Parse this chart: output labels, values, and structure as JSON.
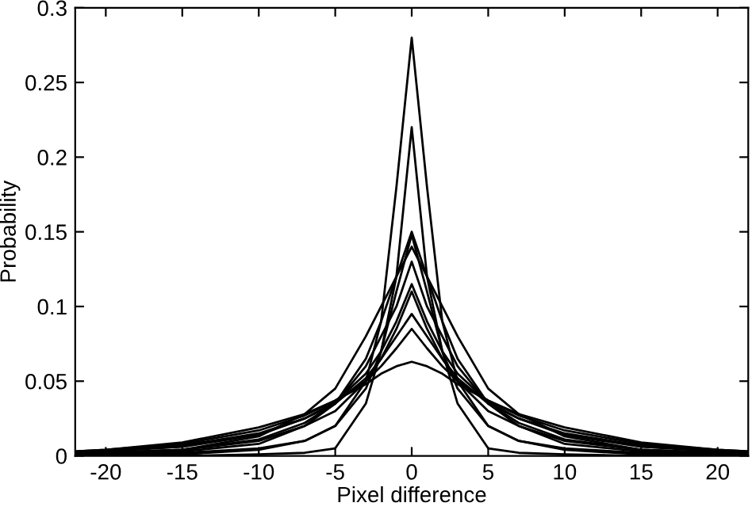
{
  "chart_data": {
    "type": "line",
    "xlabel": "Pixel difference",
    "ylabel": "Probability",
    "x": [
      -22,
      -20,
      -15,
      -10,
      -7,
      -5,
      -3,
      -2,
      -1,
      0,
      1,
      2,
      3,
      5,
      7,
      10,
      15,
      20,
      22
    ],
    "xlim": [
      -22,
      22
    ],
    "xticks": [
      -20,
      -15,
      -10,
      -5,
      0,
      5,
      10,
      15,
      20
    ],
    "ylim": [
      0,
      0.3
    ],
    "yticks": [
      0,
      0.05,
      0.1,
      0.15,
      0.2,
      0.25,
      0.3
    ],
    "grid": false,
    "marker": "none",
    "line_style": "solid",
    "series": [
      {
        "color": "#000000",
        "values": [
          0,
          0.001,
          0.001,
          0.004,
          0.01,
          0.02,
          0.05,
          0.09,
          0.18,
          0.28,
          0.18,
          0.09,
          0.05,
          0.02,
          0.01,
          0.004,
          0.001,
          0.001,
          0
        ]
      },
      {
        "color": "#000000",
        "values": [
          0.001,
          0.001,
          0.002,
          0.005,
          0.01,
          0.02,
          0.045,
          0.07,
          0.12,
          0.22,
          0.12,
          0.07,
          0.045,
          0.02,
          0.01,
          0.005,
          0.002,
          0.001,
          0.001
        ]
      },
      {
        "color": "#000000",
        "values": [
          0.001,
          0.001,
          0.003,
          0.008,
          0.02,
          0.035,
          0.065,
          0.09,
          0.12,
          0.15,
          0.12,
          0.09,
          0.065,
          0.035,
          0.02,
          0.008,
          0.003,
          0.001,
          0.001
        ]
      },
      {
        "color": "#000000",
        "values": [
          0,
          0,
          0,
          0.001,
          0.002,
          0.005,
          0.035,
          0.07,
          0.11,
          0.148,
          0.11,
          0.07,
          0.035,
          0.005,
          0.002,
          0.001,
          0,
          0,
          0
        ]
      },
      {
        "color": "#000000",
        "values": [
          0.001,
          0.002,
          0.004,
          0.013,
          0.028,
          0.045,
          0.08,
          0.1,
          0.12,
          0.14,
          0.12,
          0.1,
          0.08,
          0.045,
          0.028,
          0.013,
          0.004,
          0.002,
          0.001
        ]
      },
      {
        "color": "#000000",
        "values": [
          0.001,
          0.002,
          0.004,
          0.011,
          0.022,
          0.035,
          0.06,
          0.08,
          0.1,
          0.13,
          0.1,
          0.08,
          0.06,
          0.035,
          0.022,
          0.011,
          0.004,
          0.002,
          0.001
        ]
      },
      {
        "color": "#000000",
        "values": [
          0.002,
          0.003,
          0.006,
          0.014,
          0.025,
          0.036,
          0.055,
          0.07,
          0.09,
          0.115,
          0.09,
          0.07,
          0.055,
          0.036,
          0.025,
          0.014,
          0.006,
          0.003,
          0.002
        ]
      },
      {
        "color": "#000000",
        "values": [
          0.001,
          0.002,
          0.004,
          0.01,
          0.02,
          0.03,
          0.05,
          0.065,
          0.085,
          0.11,
          0.085,
          0.065,
          0.05,
          0.03,
          0.02,
          0.01,
          0.004,
          0.002,
          0.001
        ]
      },
      {
        "color": "#000000",
        "values": [
          0.002,
          0.003,
          0.007,
          0.015,
          0.025,
          0.035,
          0.052,
          0.065,
          0.08,
          0.095,
          0.08,
          0.065,
          0.052,
          0.035,
          0.025,
          0.015,
          0.007,
          0.003,
          0.002
        ]
      },
      {
        "color": "#000000",
        "values": [
          0.003,
          0.004,
          0.008,
          0.017,
          0.027,
          0.037,
          0.05,
          0.06,
          0.072,
          0.085,
          0.072,
          0.06,
          0.05,
          0.037,
          0.027,
          0.017,
          0.008,
          0.004,
          0.003
        ]
      },
      {
        "color": "#000000",
        "values": [
          0.003,
          0.004,
          0.009,
          0.019,
          0.028,
          0.037,
          0.048,
          0.055,
          0.06,
          0.063,
          0.06,
          0.055,
          0.048,
          0.037,
          0.028,
          0.019,
          0.009,
          0.004,
          0.003
        ]
      }
    ]
  }
}
